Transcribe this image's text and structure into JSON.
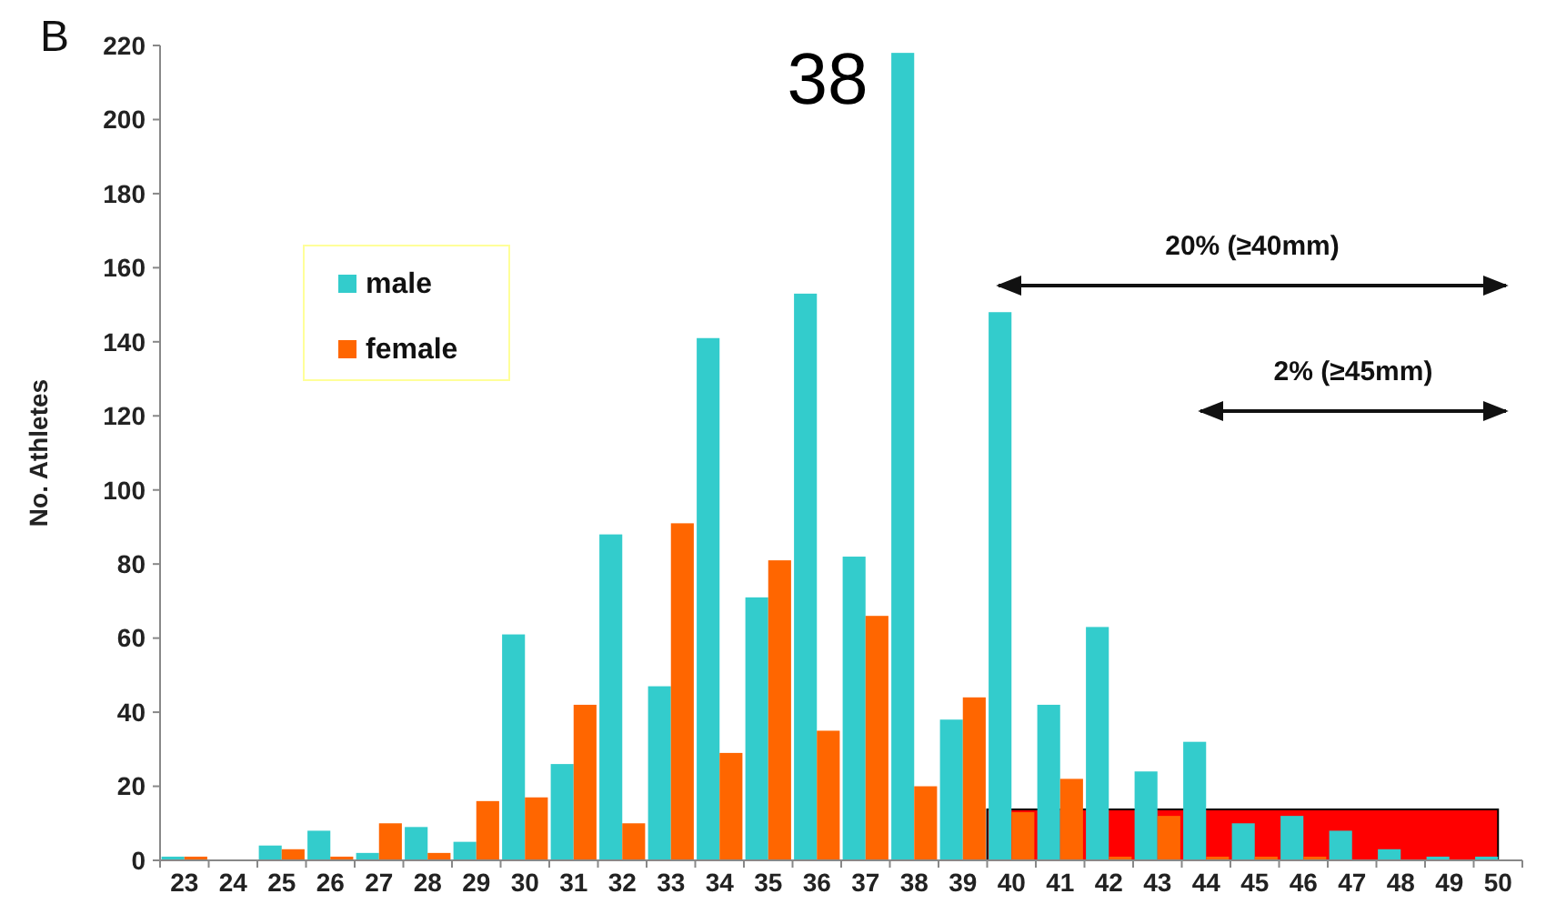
{
  "chart_data": {
    "type": "bar",
    "ylabel": "No. Athletes",
    "categories": [
      "23",
      "24",
      "25",
      "26",
      "27",
      "28",
      "29",
      "30",
      "31",
      "32",
      "33",
      "34",
      "35",
      "36",
      "37",
      "38",
      "39",
      "40",
      "41",
      "42",
      "43",
      "44",
      "45",
      "46",
      "47",
      "48",
      "49",
      "50"
    ],
    "series": [
      {
        "name": "male",
        "color": "#33cccc",
        "values": [
          1,
          0,
          4,
          8,
          2,
          9,
          5,
          61,
          26,
          88,
          47,
          141,
          71,
          153,
          82,
          218,
          38,
          148,
          42,
          63,
          24,
          32,
          10,
          12,
          8,
          3,
          1,
          1
        ]
      },
      {
        "name": "female",
        "color": "#ff6600",
        "values": [
          1,
          0,
          3,
          1,
          10,
          2,
          16,
          17,
          42,
          10,
          91,
          29,
          81,
          35,
          66,
          20,
          44,
          13,
          22,
          1,
          12,
          1,
          1,
          1,
          0,
          0,
          0,
          0
        ]
      }
    ],
    "ylim": [
      0,
      220
    ],
    "yticks": [
      0,
      20,
      40,
      60,
      80,
      100,
      120,
      140,
      160,
      180,
      200,
      220
    ],
    "legend": "top left",
    "grid": false,
    "bands": [
      {
        "axis": "x",
        "from": "40",
        "to": "50",
        "color": "#ff0000"
      }
    ],
    "annotations": [
      "B",
      "38",
      "20% (≥40mm)",
      "2% (≥45mm)"
    ]
  }
}
